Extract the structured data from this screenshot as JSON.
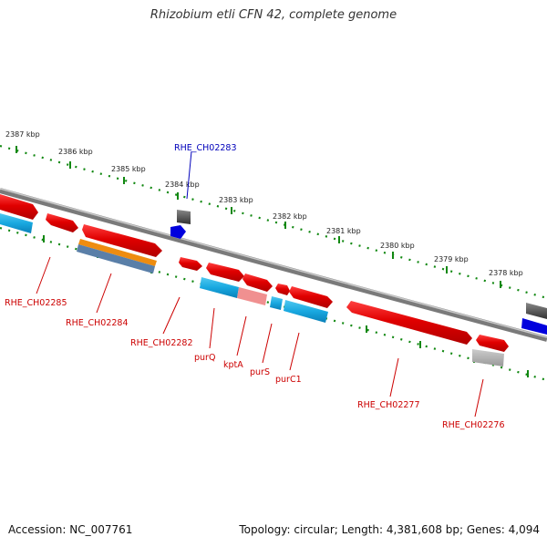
{
  "title": "Rhizobium etli CFN 42, complete genome",
  "accession_label": "Accession: NC_007761",
  "summary": "Topology: circular; Length: 4,381,608 bp; Genes: 4,094",
  "kbp_marks": [
    "2387 kbp",
    "2386 kbp",
    "2385 kbp",
    "2384 kbp",
    "2383 kbp",
    "2382 kbp",
    "2381 kbp",
    "2380 kbp",
    "2379 kbp",
    "2378 kbp"
  ],
  "genes": [
    {
      "label": "RHE_CH02283",
      "color": "#0000bb",
      "name": "gene-label-rhe-ch02283"
    },
    {
      "label": "RHE_CH02285",
      "color": "#cc0000",
      "name": "gene-label-rhe-ch02285"
    },
    {
      "label": "RHE_CH02284",
      "color": "#cc0000",
      "name": "gene-label-rhe-ch02284"
    },
    {
      "label": "RHE_CH02282",
      "color": "#cc0000",
      "name": "gene-label-rhe-ch02282"
    },
    {
      "label": "purQ",
      "color": "#cc0000",
      "name": "gene-label-purq"
    },
    {
      "label": "kptA",
      "color": "#cc0000",
      "name": "gene-label-kpta"
    },
    {
      "label": "purS",
      "color": "#cc0000",
      "name": "gene-label-purs"
    },
    {
      "label": "purC1",
      "color": "#cc0000",
      "name": "gene-label-purc1"
    },
    {
      "label": "RHE_CH02277",
      "color": "#cc0000",
      "name": "gene-label-rhe-ch02277"
    },
    {
      "label": "RHE_CH02276",
      "color": "#cc0000",
      "name": "gene-label-rhe-ch02276"
    }
  ],
  "colors": {
    "gene_red": "#e00000",
    "rna_cyan": "#18a8e0",
    "pseudo_gray": "#555555",
    "misc_blue": "#0000dd",
    "tick_green": "#118811",
    "backbone": "#7a7a7a"
  }
}
